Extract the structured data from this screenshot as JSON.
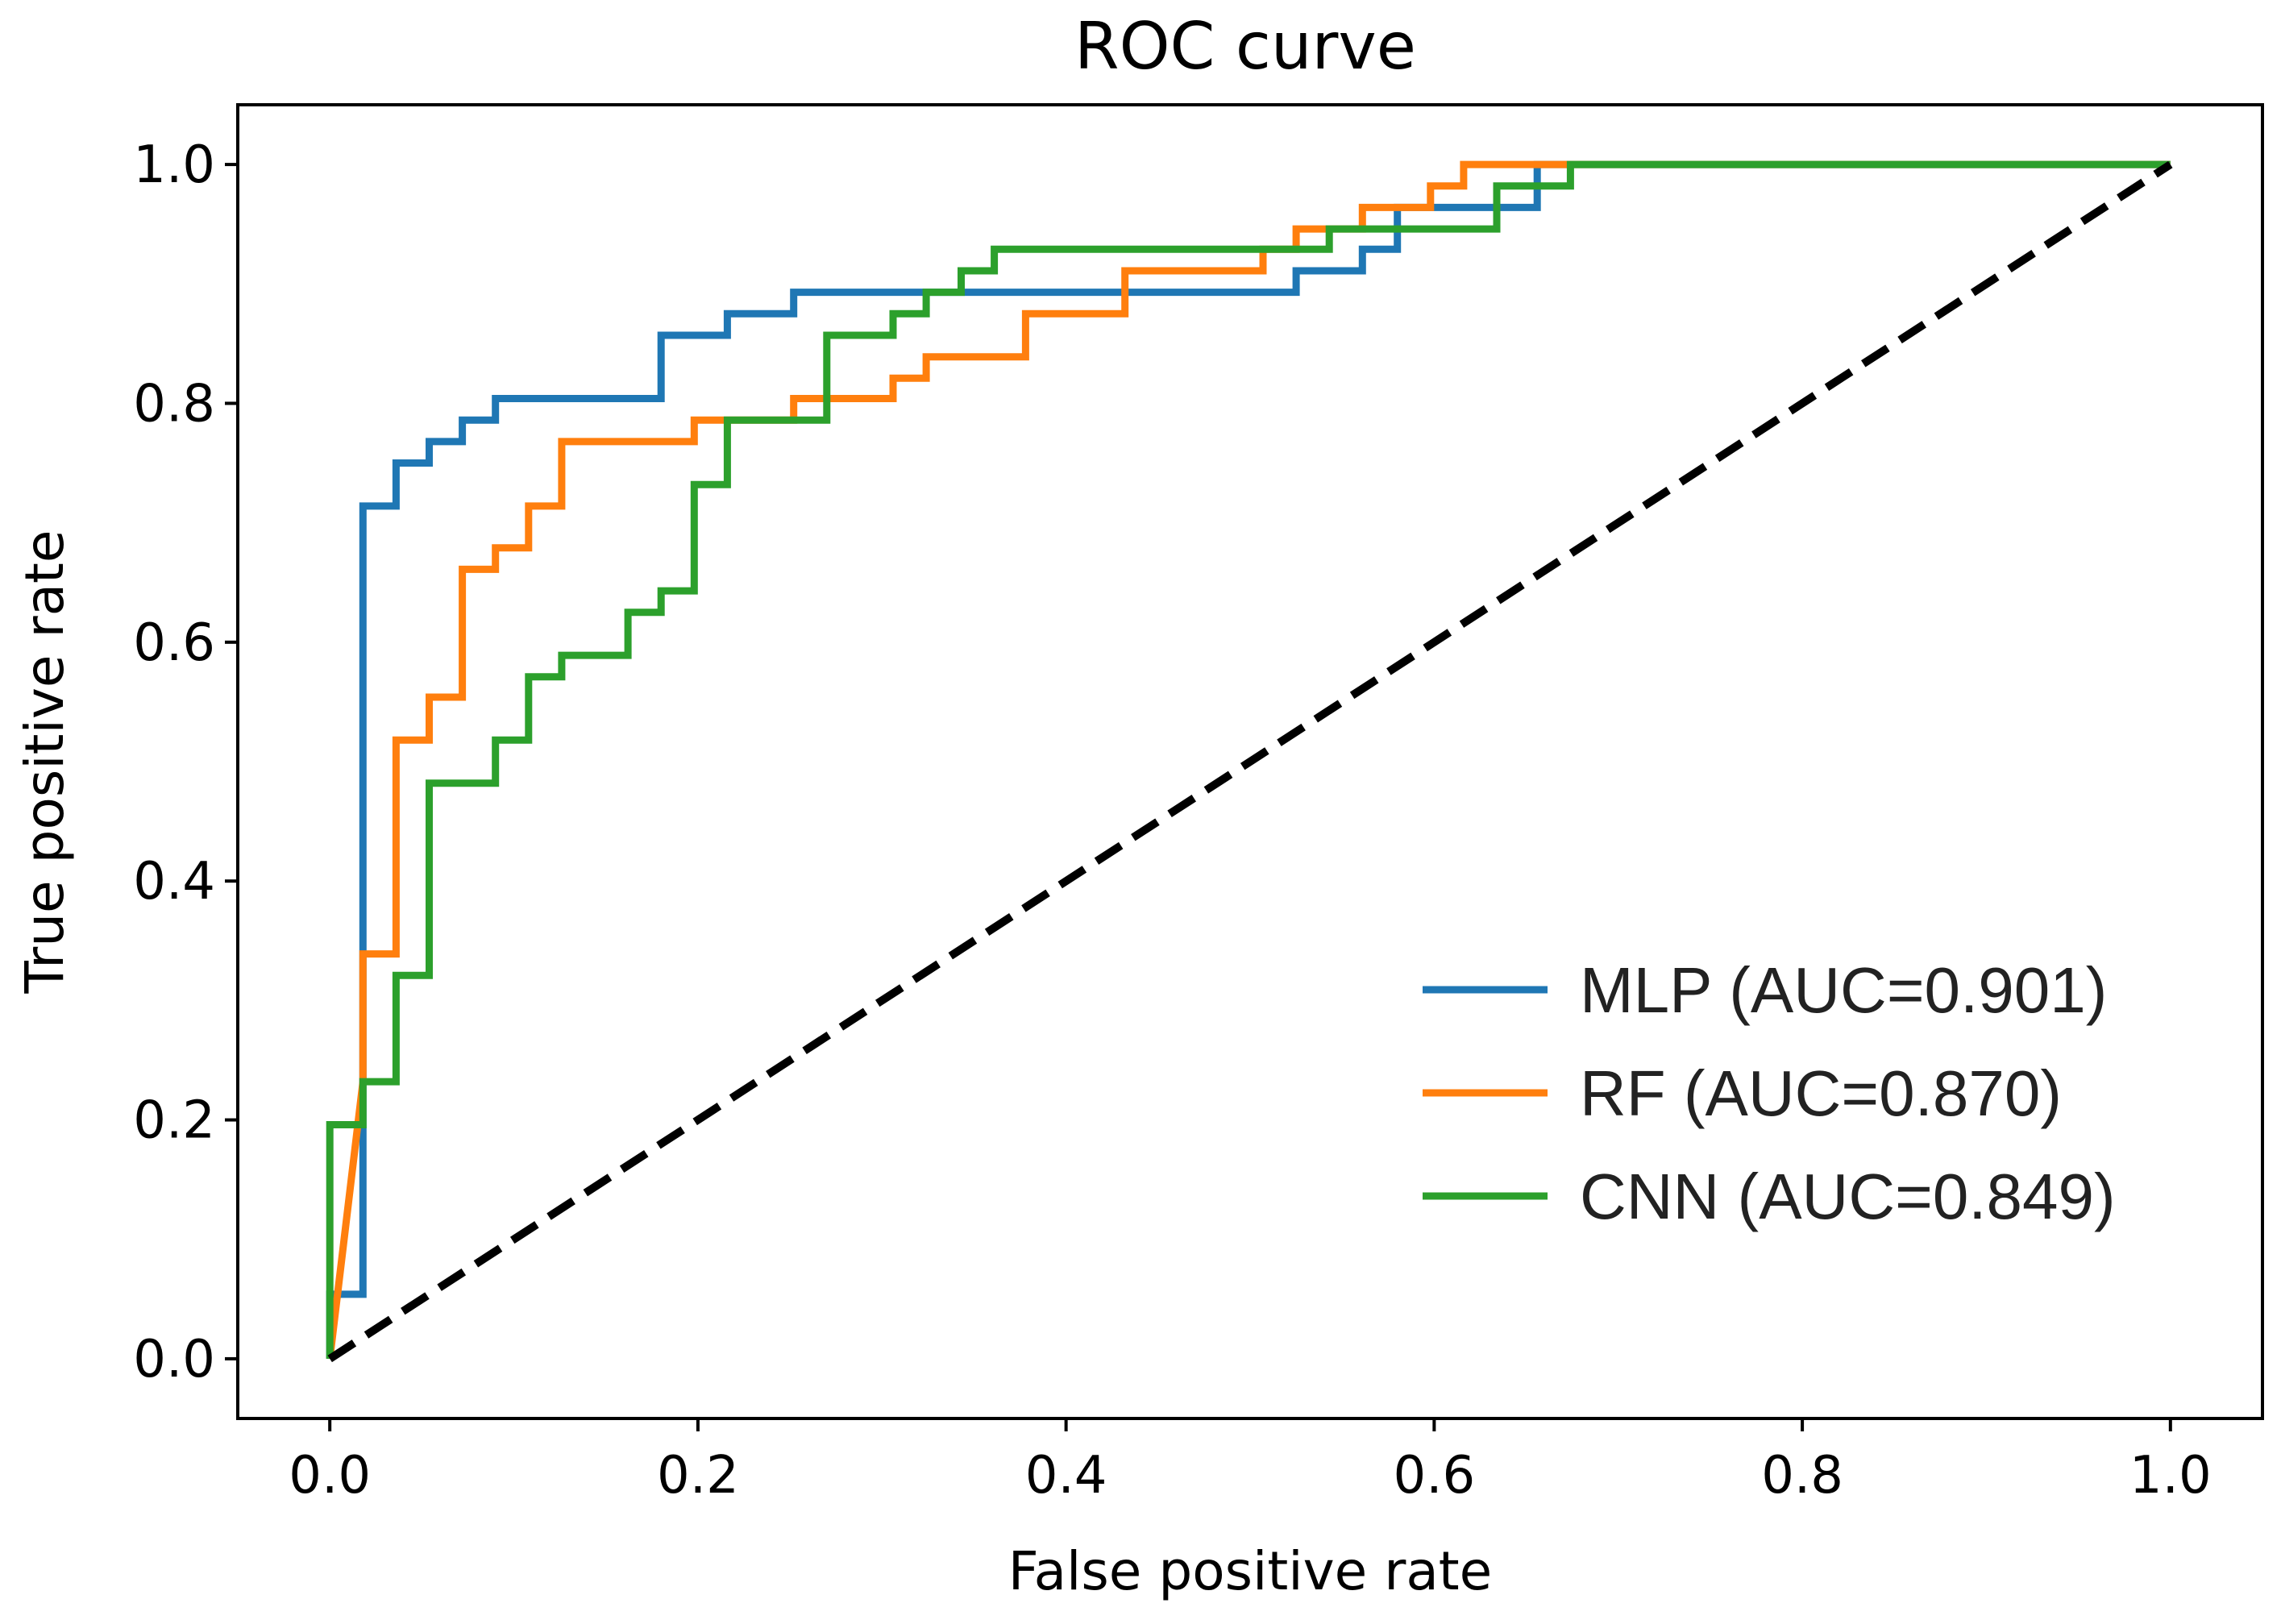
{
  "chart_data": {
    "type": "line",
    "title": "ROC curve",
    "xlabel": "False positive rate",
    "ylabel": "True positive rate",
    "xlim": [
      -0.05,
      1.05
    ],
    "ylim": [
      -0.05,
      1.05
    ],
    "xticks": [
      "0.0",
      "0.2",
      "0.4",
      "0.6",
      "0.8",
      "1.0"
    ],
    "yticks": [
      "0.0",
      "0.2",
      "0.4",
      "0.6",
      "0.8",
      "1.0"
    ],
    "legend_position": "lower-right",
    "series": [
      {
        "name": "MLP",
        "label": "MLP (AUC=0.901)",
        "color": "#1f77b4",
        "x": [
          0,
          0,
          0.018,
          0.018,
          0.036,
          0.036,
          0.054,
          0.054,
          0.072,
          0.072,
          0.09,
          0.09,
          0.18,
          0.18,
          0.216,
          0.216,
          0.252,
          0.252,
          0.525,
          0.525,
          0.561,
          0.561,
          0.58,
          0.58,
          0.656,
          0.656,
          1.0
        ],
        "y": [
          0,
          0.054,
          0.054,
          0.714,
          0.714,
          0.75,
          0.75,
          0.768,
          0.768,
          0.786,
          0.786,
          0.804,
          0.804,
          0.857,
          0.857,
          0.875,
          0.875,
          0.893,
          0.893,
          0.911,
          0.911,
          0.929,
          0.929,
          0.964,
          0.964,
          1.0,
          1.0
        ]
      },
      {
        "name": "RF",
        "label": "RF (AUC=0.870)",
        "color": "#ff7f0e",
        "x": [
          0,
          0.018,
          0.018,
          0.036,
          0.036,
          0.054,
          0.054,
          0.072,
          0.072,
          0.09,
          0.09,
          0.108,
          0.108,
          0.126,
          0.126,
          0.198,
          0.198,
          0.252,
          0.252,
          0.306,
          0.306,
          0.324,
          0.324,
          0.378,
          0.378,
          0.432,
          0.432,
          0.507,
          0.507,
          0.525,
          0.525,
          0.561,
          0.561,
          0.598,
          0.598,
          0.616,
          0.616,
          0.674,
          0.674,
          1.0
        ],
        "y": [
          0,
          0.232,
          0.339,
          0.339,
          0.518,
          0.518,
          0.554,
          0.554,
          0.661,
          0.661,
          0.679,
          0.679,
          0.714,
          0.714,
          0.768,
          0.768,
          0.786,
          0.786,
          0.804,
          0.804,
          0.821,
          0.821,
          0.839,
          0.839,
          0.875,
          0.875,
          0.911,
          0.911,
          0.929,
          0.929,
          0.946,
          0.946,
          0.964,
          0.964,
          0.982,
          0.982,
          1.0,
          1.0,
          1.0,
          1.0
        ]
      },
      {
        "name": "CNN",
        "label": "CNN (AUC=0.849)",
        "color": "#2ca02c",
        "x": [
          0,
          0,
          0.018,
          0.018,
          0.036,
          0.036,
          0.054,
          0.054,
          0.09,
          0.09,
          0.108,
          0.108,
          0.126,
          0.126,
          0.162,
          0.162,
          0.18,
          0.18,
          0.198,
          0.198,
          0.216,
          0.216,
          0.27,
          0.27,
          0.306,
          0.306,
          0.324,
          0.324,
          0.343,
          0.343,
          0.361,
          0.361,
          0.543,
          0.543,
          0.634,
          0.634,
          0.674,
          0.674,
          1.0
        ],
        "y": [
          0,
          0.196,
          0.196,
          0.232,
          0.232,
          0.321,
          0.321,
          0.482,
          0.482,
          0.518,
          0.518,
          0.571,
          0.571,
          0.589,
          0.589,
          0.625,
          0.625,
          0.643,
          0.643,
          0.732,
          0.732,
          0.786,
          0.786,
          0.857,
          0.857,
          0.875,
          0.875,
          0.893,
          0.893,
          0.911,
          0.911,
          0.929,
          0.929,
          0.946,
          0.946,
          0.982,
          0.982,
          1.0,
          1.0
        ]
      },
      {
        "name": "chance",
        "label": "",
        "color": "#000000",
        "dashed": true,
        "x": [
          0,
          1
        ],
        "y": [
          0,
          1
        ]
      }
    ]
  }
}
